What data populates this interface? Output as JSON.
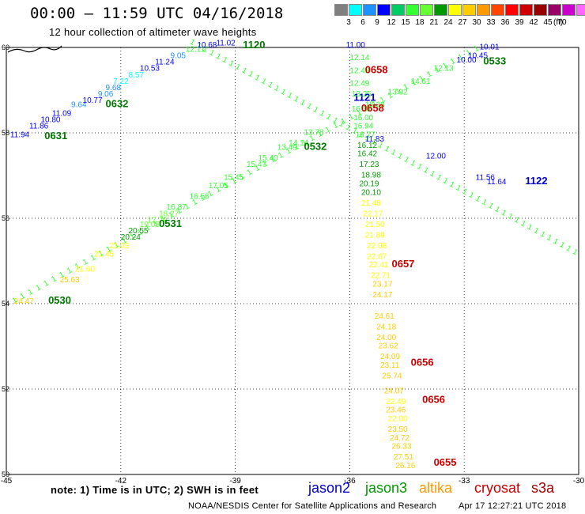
{
  "header": {
    "title": "00:00 – 11:59 UTC 04/16/2018",
    "subtitle": "12 hour collection of altimeter wave heights"
  },
  "legend": {
    "colors": [
      "#808080",
      "#00ffff",
      "#1e90ff",
      "#0000ff",
      "#00cc66",
      "#33ff33",
      "#66ff33",
      "#009900",
      "#ffff00",
      "#ffcc00",
      "#ff9900",
      "#ff4500",
      "#ff0000",
      "#cc0000",
      "#990000",
      "#990066",
      "#cc00cc",
      "#ff66ff",
      "#000000"
    ],
    "labels": [
      "3",
      "6",
      "9",
      "12",
      "15",
      "18",
      "21",
      "24",
      "27",
      "30",
      "33",
      "36",
      "39",
      "42",
      "45",
      "70"
    ],
    "unit": "(ft)"
  },
  "axes": {
    "lon_ticks": [
      "-45",
      "-42",
      "-39",
      "-36",
      "-33",
      "-30"
    ],
    "lat_ticks": [
      "60",
      "58",
      "56",
      "54",
      "52",
      "50"
    ]
  },
  "map_data": {
    "lon_range": [
      -45,
      -30
    ],
    "lat_range": [
      50,
      60
    ],
    "tracks": [
      {
        "satellite": "jason3",
        "labels": [
          {
            "text": "0530",
            "lon": -43.9,
            "lat": 54.0
          },
          {
            "text": "0531",
            "lon": -41.0,
            "lat": 55.8
          },
          {
            "text": "0532",
            "lon": -37.2,
            "lat": 57.6
          },
          {
            "text": "0533",
            "lon": -32.5,
            "lat": 59.6
          }
        ],
        "points": [
          {
            "v": "24.47",
            "lon": -44.8,
            "lat": 54.0,
            "c": "#ffcc00"
          },
          {
            "v": "25.63",
            "lon": -43.6,
            "lat": 54.5,
            "c": "#ffcc00"
          },
          {
            "v": "21.60",
            "lon": -43.2,
            "lat": 54.75,
            "c": "#ffff00"
          },
          {
            "v": "21.45",
            "lon": -42.7,
            "lat": 55.1,
            "c": "#ffff00"
          },
          {
            "v": "21.03",
            "lon": -42.3,
            "lat": 55.3,
            "c": "#ffff00"
          },
          {
            "v": "20.24",
            "lon": -42.0,
            "lat": 55.5,
            "c": "#009900"
          },
          {
            "v": "20.55",
            "lon": -41.8,
            "lat": 55.65,
            "c": "#009900"
          },
          {
            "v": "19.05",
            "lon": -41.5,
            "lat": 55.8,
            "c": "#66ff33"
          },
          {
            "v": "17.29",
            "lon": -41.3,
            "lat": 55.9,
            "c": "#66ff33"
          },
          {
            "v": "18.27",
            "lon": -41.0,
            "lat": 56.05,
            "c": "#66ff33"
          },
          {
            "v": "16.87",
            "lon": -40.8,
            "lat": 56.2,
            "c": "#33ff33"
          },
          {
            "v": "16.56",
            "lon": -40.2,
            "lat": 56.45,
            "c": "#33ff33"
          },
          {
            "v": "17.05",
            "lon": -39.7,
            "lat": 56.7,
            "c": "#33ff33"
          },
          {
            "v": "15.45",
            "lon": -39.3,
            "lat": 56.9,
            "c": "#33ff33"
          },
          {
            "v": "15.47",
            "lon": -38.7,
            "lat": 57.2,
            "c": "#33ff33"
          },
          {
            "v": "15.40",
            "lon": -38.4,
            "lat": 57.35,
            "c": "#33ff33"
          },
          {
            "v": "14.14",
            "lon": -37.6,
            "lat": 57.7,
            "c": "#33ff33"
          },
          {
            "v": "13.49",
            "lon": -37.9,
            "lat": 57.6,
            "c": "#33ff33"
          },
          {
            "v": "13.78",
            "lon": -37.2,
            "lat": 57.95,
            "c": "#33ff33"
          },
          {
            "v": "13.92",
            "lon": -35.0,
            "lat": 58.9,
            "c": "#33ff33"
          },
          {
            "v": "14.61",
            "lon": -34.4,
            "lat": 59.15,
            "c": "#33ff33"
          },
          {
            "v": "12.13",
            "lon": -33.8,
            "lat": 59.45,
            "c": "#33ff33"
          },
          {
            "v": "10.00",
            "lon": -33.2,
            "lat": 59.65,
            "c": "#0000ff"
          },
          {
            "v": "10.45",
            "lon": -32.9,
            "lat": 59.75,
            "c": "#0000ff"
          },
          {
            "v": "10.01",
            "lon": -32.6,
            "lat": 59.95,
            "c": "#0000ff"
          }
        ]
      },
      {
        "satellite": "jason3",
        "labels": [
          {
            "text": "0631",
            "lon": -44.0,
            "lat": 57.85
          },
          {
            "text": "0632",
            "lon": -42.4,
            "lat": 58.6
          },
          {
            "text": "1120",
            "lon": -38.8,
            "lat": 59.98
          }
        ],
        "points": [
          {
            "v": "11.94",
            "lon": -44.9,
            "lat": 57.9,
            "c": "#0000ff"
          },
          {
            "v": "11.86",
            "lon": -44.4,
            "lat": 58.1,
            "c": "#0000ff"
          },
          {
            "v": "10.80",
            "lon": -44.1,
            "lat": 58.25,
            "c": "#0000ff"
          },
          {
            "v": "11.09",
            "lon": -43.8,
            "lat": 58.4,
            "c": "#0000ff"
          },
          {
            "v": "9.64",
            "lon": -43.3,
            "lat": 58.6,
            "c": "#1e90ff"
          },
          {
            "v": "10.77",
            "lon": -43.0,
            "lat": 58.7,
            "c": "#0000ff"
          },
          {
            "v": "9.06",
            "lon": -42.6,
            "lat": 58.85,
            "c": "#1e90ff"
          },
          {
            "v": "9.68",
            "lon": -42.4,
            "lat": 59.0,
            "c": "#1e90ff"
          },
          {
            "v": "7.22",
            "lon": -42.2,
            "lat": 59.15,
            "c": "#00ffff"
          },
          {
            "v": "8.57",
            "lon": -41.8,
            "lat": 59.3,
            "c": "#00ffff"
          },
          {
            "v": "10.53",
            "lon": -41.5,
            "lat": 59.45,
            "c": "#0000ff"
          },
          {
            "v": "11.24",
            "lon": -41.1,
            "lat": 59.6,
            "c": "#0000ff"
          },
          {
            "v": "9.05",
            "lon": -40.7,
            "lat": 59.75,
            "c": "#1e90ff"
          },
          {
            "v": "12.11",
            "lon": -40.3,
            "lat": 59.9,
            "c": "#33ff33"
          },
          {
            "v": "10.68",
            "lon": -40.0,
            "lat": 60.0,
            "c": "#0000ff"
          },
          {
            "v": "11.02",
            "lon": -39.5,
            "lat": 60.05,
            "c": "#0000ff"
          }
        ]
      },
      {
        "satellite": "jason2",
        "labels": [
          {
            "text": "1121",
            "lon": -35.9,
            "lat": 58.75
          },
          {
            "text": "1122",
            "lon": -31.4,
            "lat": 56.8
          }
        ],
        "points": [
          {
            "v": "11.83",
            "lon": -35.6,
            "lat": 57.8,
            "c": "#0000ff"
          },
          {
            "v": "12.00",
            "lon": -34.0,
            "lat": 57.4,
            "c": "#0000ff"
          },
          {
            "v": "11.56",
            "lon": -32.7,
            "lat": 56.9,
            "c": "#0000ff"
          },
          {
            "v": "11.64",
            "lon": -32.4,
            "lat": 56.8,
            "c": "#0000ff"
          }
        ]
      },
      {
        "satellite": "cryosat",
        "labels": [
          {
            "text": "0658",
            "lon": -35.6,
            "lat": 59.4
          },
          {
            "text": "0658",
            "lon": -35.7,
            "lat": 58.5
          },
          {
            "text": "0657",
            "lon": -34.9,
            "lat": 54.85
          },
          {
            "text": "0656",
            "lon": -34.4,
            "lat": 52.55
          },
          {
            "text": "0656",
            "lon": -34.1,
            "lat": 51.68
          },
          {
            "text": "0655",
            "lon": -33.8,
            "lat": 50.2
          }
        ],
        "points": [
          {
            "v": "11.00",
            "lon": -36.1,
            "lat": 60.0,
            "c": "#0000ff"
          },
          {
            "v": "12.14",
            "lon": -36.0,
            "lat": 59.7,
            "c": "#33ff33"
          },
          {
            "v": "12.48",
            "lon": -36.0,
            "lat": 59.4,
            "c": "#33ff33"
          },
          {
            "v": "12.49",
            "lon": -36.0,
            "lat": 59.1,
            "c": "#33ff33"
          },
          {
            "v": "13.25",
            "lon": -35.95,
            "lat": 58.85,
            "c": "#33ff33"
          },
          {
            "v": "15.38",
            "lon": -35.6,
            "lat": 58.6,
            "c": "#33ff33"
          },
          {
            "v": "16.31",
            "lon": -35.95,
            "lat": 58.5,
            "c": "#33ff33"
          },
          {
            "v": "16.00",
            "lon": -35.9,
            "lat": 58.3,
            "c": "#33ff33"
          },
          {
            "v": "16.94",
            "lon": -35.9,
            "lat": 58.1,
            "c": "#33ff33"
          },
          {
            "v": "16.77",
            "lon": -35.85,
            "lat": 57.9,
            "c": "#33ff33"
          },
          {
            "v": "16.12",
            "lon": -35.8,
            "lat": 57.65,
            "c": "#009900"
          },
          {
            "v": "16.42",
            "lon": -35.8,
            "lat": 57.45,
            "c": "#009900"
          },
          {
            "v": "17.23",
            "lon": -35.75,
            "lat": 57.2,
            "c": "#009900"
          },
          {
            "v": "18.98",
            "lon": -35.7,
            "lat": 56.95,
            "c": "#009900"
          },
          {
            "v": "20.19",
            "lon": -35.75,
            "lat": 56.75,
            "c": "#009900"
          },
          {
            "v": "20.10",
            "lon": -35.7,
            "lat": 56.55,
            "c": "#009900"
          },
          {
            "v": "21.48",
            "lon": -35.7,
            "lat": 56.3,
            "c": "#ffff00"
          },
          {
            "v": "22.17",
            "lon": -35.65,
            "lat": 56.05,
            "c": "#ffff00"
          },
          {
            "v": "21.50",
            "lon": -35.6,
            "lat": 55.8,
            "c": "#ffff00"
          },
          {
            "v": "21.89",
            "lon": -35.6,
            "lat": 55.55,
            "c": "#ffff00"
          },
          {
            "v": "22.08",
            "lon": -35.55,
            "lat": 55.3,
            "c": "#ffff00"
          },
          {
            "v": "22.67",
            "lon": -35.55,
            "lat": 55.05,
            "c": "#ffff00"
          },
          {
            "v": "22.41",
            "lon": -35.5,
            "lat": 54.85,
            "c": "#ffff00"
          },
          {
            "v": "22.71",
            "lon": -35.45,
            "lat": 54.6,
            "c": "#ffff00"
          },
          {
            "v": "23.17",
            "lon": -35.4,
            "lat": 54.4,
            "c": "#ffcc00"
          },
          {
            "v": "24.17",
            "lon": -35.4,
            "lat": 54.15,
            "c": "#ffcc00"
          },
          {
            "v": "24.61",
            "lon": -35.35,
            "lat": 53.65,
            "c": "#ffcc00"
          },
          {
            "v": "24.18",
            "lon": -35.3,
            "lat": 53.4,
            "c": "#ffcc00"
          },
          {
            "v": "24.00",
            "lon": -35.3,
            "lat": 53.15,
            "c": "#ffcc00"
          },
          {
            "v": "23.62",
            "lon": -35.25,
            "lat": 52.95,
            "c": "#ffcc00"
          },
          {
            "v": "24.09",
            "lon": -35.2,
            "lat": 52.7,
            "c": "#ffcc00"
          },
          {
            "v": "23.11",
            "lon": -35.2,
            "lat": 52.5,
            "c": "#ffcc00"
          },
          {
            "v": "25.74",
            "lon": -35.15,
            "lat": 52.25,
            "c": "#ffcc00"
          },
          {
            "v": "24.07",
            "lon": -35.1,
            "lat": 51.9,
            "c": "#ffcc00"
          },
          {
            "v": "22.49",
            "lon": -35.05,
            "lat": 51.65,
            "c": "#ffff00"
          },
          {
            "v": "23.46",
            "lon": -35.05,
            "lat": 51.45,
            "c": "#ffcc00"
          },
          {
            "v": "22.00",
            "lon": -35.0,
            "lat": 51.25,
            "c": "#ffff00"
          },
          {
            "v": "23.50",
            "lon": -35.0,
            "lat": 51.0,
            "c": "#ffcc00"
          },
          {
            "v": "24.72",
            "lon": -34.95,
            "lat": 50.8,
            "c": "#ffcc00"
          },
          {
            "v": "26.33",
            "lon": -34.9,
            "lat": 50.6,
            "c": "#ffcc00"
          },
          {
            "v": "27.51",
            "lon": -34.85,
            "lat": 50.35,
            "c": "#ffcc00"
          },
          {
            "v": "26.16",
            "lon": -34.8,
            "lat": 50.15,
            "c": "#ffcc00"
          }
        ]
      }
    ],
    "background_tracks": [
      {
        "c": "#33ff33",
        "from": [
          -40.2,
          60.1
        ],
        "to": [
          -30.0,
          55.1
        ]
      },
      {
        "c": "#33ff33",
        "from": [
          -44.8,
          54.0
        ],
        "to": [
          -32.5,
          60.0
        ]
      }
    ]
  },
  "footer": {
    "note": "note: 1) Time is in UTC; 2) SWH is in feet",
    "satellites": [
      {
        "name": "jason2",
        "color": "#0000cc"
      },
      {
        "name": "jason3",
        "color": "#009900"
      },
      {
        "name": "altika",
        "color": "#ff9900"
      },
      {
        "name": "cryosat",
        "color": "#cc0000"
      },
      {
        "name": "s3a",
        "color": "#990000"
      }
    ],
    "credit": "NOAA/NESDIS Center for Satellite Applications and Research",
    "generated": "Apr 17 12:27:21 UTC 2018"
  }
}
